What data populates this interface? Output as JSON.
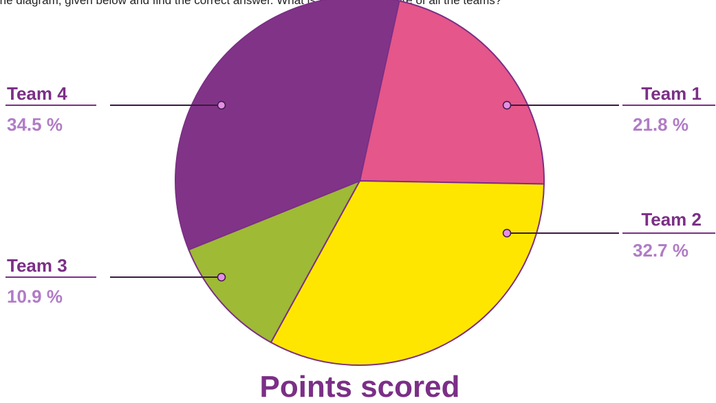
{
  "question": "Use the diagram, given below and find the correct answer. What is the average score of all the teams?",
  "chart_data": {
    "type": "pie",
    "title": "Points scored",
    "categories": [
      "Team 1",
      "Team 2",
      "Team 3",
      "Team 4"
    ],
    "values": [
      21.8,
      32.7,
      10.9,
      34.5
    ],
    "value_labels": [
      "21.8 %",
      "32.7 %",
      "10.9 %",
      "34.5 %"
    ],
    "colors": [
      "#e5568a",
      "#ffe600",
      "#9fba35",
      "#813487"
    ]
  }
}
